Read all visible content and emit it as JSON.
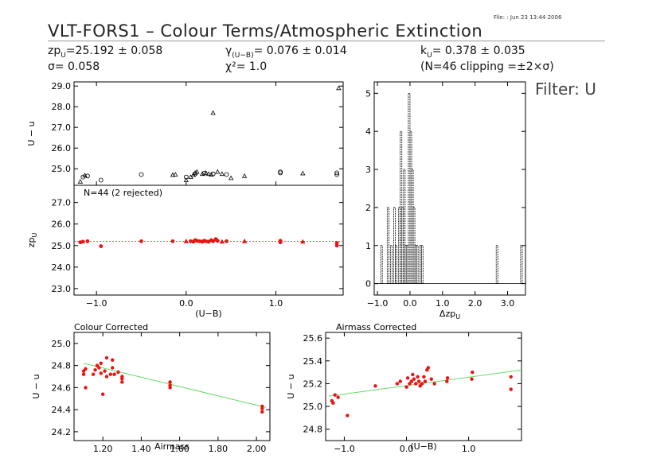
{
  "header": {
    "file_label": "File:",
    "file_date": ": Jun 23 13:44 2006",
    "title": "VLT-FORS1 – Colour Terms/Atmospheric Extinction",
    "zp_label": "zp",
    "zp_sub": "U",
    "zp_value": "=25.192 ± 0.058",
    "sigma_text": "σ= 0.058",
    "gamma_label": "γ",
    "gamma_sub": "(U−B)",
    "gamma_value": "= 0.076 ± 0.014",
    "chi_text": "χ²= 1.0",
    "k_label": "k",
    "k_sub": "U",
    "k_value": "= 0.378 ± 0.035",
    "clip_text": "(N=46 clipping =±2×σ)",
    "filter_label": "Filter: U"
  },
  "colors": {
    "data_red": "#ee1111",
    "fit_green": "#66dd66",
    "fit_red_dotted": "#ee4444",
    "axis": "#000000"
  },
  "chart_data": [
    {
      "id": "raw",
      "type": "scatter",
      "ylabel": "U − u",
      "xlim": [
        -1.25,
        1.75
      ],
      "ylim": [
        24.2,
        29.2
      ],
      "yticks": [
        25.0,
        26.0,
        27.0,
        28.0,
        29.0
      ],
      "ytick_labels": [
        "25.0",
        "26.0",
        "27.0",
        "28.0",
        "29.0"
      ],
      "xticks": [
        -1.0,
        0.0,
        1.0
      ],
      "markers": {
        "circle": "open circle",
        "triangle": "open triangle"
      },
      "circles": [
        [
          -1.15,
          24.6
        ],
        [
          -1.1,
          24.65
        ],
        [
          -0.95,
          24.45
        ],
        [
          -0.5,
          24.72
        ],
        [
          0.0,
          24.6
        ],
        [
          0.1,
          24.75
        ],
        [
          0.2,
          24.78
        ],
        [
          0.3,
          24.75
        ],
        [
          0.45,
          24.72
        ],
        [
          1.05,
          24.85
        ],
        [
          1.05,
          24.8
        ],
        [
          1.68,
          24.8
        ],
        [
          1.68,
          24.72
        ]
      ],
      "triangles": [
        [
          -1.18,
          24.38
        ],
        [
          -1.13,
          24.68
        ],
        [
          -0.15,
          24.7
        ],
        [
          -0.12,
          24.72
        ],
        [
          0.0,
          24.45
        ],
        [
          0.05,
          24.6
        ],
        [
          0.08,
          24.7
        ],
        [
          0.1,
          24.8
        ],
        [
          0.12,
          24.85
        ],
        [
          0.18,
          24.75
        ],
        [
          0.22,
          24.8
        ],
        [
          0.25,
          24.75
        ],
        [
          0.28,
          24.72
        ],
        [
          0.3,
          27.7
        ],
        [
          0.35,
          24.85
        ],
        [
          0.4,
          24.75
        ],
        [
          0.5,
          24.55
        ],
        [
          0.65,
          24.65
        ],
        [
          1.3,
          24.78
        ],
        [
          1.7,
          28.9
        ]
      ]
    },
    {
      "id": "zp",
      "type": "scatter",
      "annotation": "N=44 (2 rejected)",
      "ylabel": "zp",
      "ylabel_sub": "U",
      "xlabel": "(U−B)",
      "xlim": [
        -1.25,
        1.75
      ],
      "ylim": [
        22.7,
        27.8
      ],
      "yticks": [
        23.0,
        24.0,
        25.0,
        26.0,
        27.0
      ],
      "ytick_labels": [
        "23.0",
        "24.0",
        "25.0",
        "26.0",
        "27.0"
      ],
      "xticks": [
        -1.0,
        0.0,
        1.0
      ],
      "xtick_labels": [
        "−1.0",
        "0.0",
        "1.0"
      ],
      "fit_level": 25.192,
      "points": [
        [
          -1.18,
          25.15
        ],
        [
          -1.15,
          25.18
        ],
        [
          -1.1,
          25.2
        ],
        [
          -0.95,
          24.97
        ],
        [
          -0.5,
          25.2
        ],
        [
          -0.15,
          25.2
        ],
        [
          0.05,
          25.2
        ],
        [
          0.08,
          25.18
        ],
        [
          0.1,
          25.25
        ],
        [
          0.12,
          25.22
        ],
        [
          0.15,
          25.2
        ],
        [
          0.18,
          25.18
        ],
        [
          0.2,
          25.22
        ],
        [
          0.22,
          25.2
        ],
        [
          0.25,
          25.18
        ],
        [
          0.28,
          25.25
        ],
        [
          0.3,
          25.2
        ],
        [
          0.33,
          25.3
        ],
        [
          0.35,
          25.22
        ],
        [
          0.45,
          25.2
        ],
        [
          1.05,
          25.15
        ],
        [
          1.05,
          25.22
        ],
        [
          1.68,
          25.0
        ],
        [
          1.68,
          25.12
        ]
      ],
      "triangle_points": [
        [
          0.0,
          25.2
        ],
        [
          0.4,
          25.18
        ],
        [
          0.65,
          25.2
        ],
        [
          1.3,
          25.18
        ]
      ]
    },
    {
      "id": "hist",
      "type": "bar",
      "xlabel": "Δzp",
      "xlabel_sub": "U",
      "xlim": [
        -1.1,
        3.55
      ],
      "ylim": [
        -0.3,
        5.3
      ],
      "yticks": [
        0,
        1,
        2,
        3,
        4,
        5
      ],
      "ytick_labels": [
        "0",
        "1",
        "2",
        "3",
        "4",
        "5"
      ],
      "xticks": [
        -1.0,
        0.0,
        1.0,
        2.0,
        3.0
      ],
      "xtick_labels": [
        "−1.0",
        "0.0",
        "1.0",
        "2.0",
        "3.0"
      ],
      "bin_width": 0.05,
      "bins": [
        [
          -0.9,
          1
        ],
        [
          -0.7,
          2
        ],
        [
          -0.6,
          1
        ],
        [
          -0.5,
          2
        ],
        [
          -0.45,
          1
        ],
        [
          -0.35,
          2
        ],
        [
          -0.3,
          4
        ],
        [
          -0.25,
          2
        ],
        [
          -0.2,
          3
        ],
        [
          -0.15,
          1
        ],
        [
          -0.1,
          1
        ],
        [
          -0.05,
          5
        ],
        [
          0.0,
          4
        ],
        [
          0.05,
          3
        ],
        [
          0.1,
          2
        ],
        [
          0.15,
          1
        ],
        [
          0.2,
          1
        ],
        [
          0.3,
          1
        ],
        [
          0.35,
          1
        ],
        [
          2.65,
          1
        ],
        [
          3.4,
          1
        ]
      ]
    },
    {
      "id": "colour_corrected",
      "type": "scatter",
      "title": "Colour Corrected",
      "ylabel": "U − u",
      "xlabel": "Airmass",
      "xlim": [
        1.05,
        2.07
      ],
      "ylim": [
        24.12,
        25.1
      ],
      "yticks": [
        24.2,
        24.4,
        24.6,
        24.8,
        25.0
      ],
      "ytick_labels": [
        "24.2",
        "24.4",
        "24.6",
        "24.8",
        "25.0"
      ],
      "xticks": [
        1.2,
        1.4,
        1.6,
        1.8,
        2.0
      ],
      "xtick_labels": [
        "1.20",
        "1.40",
        "1.60",
        "1.80",
        "2.00"
      ],
      "fit": [
        [
          1.1,
          24.82
        ],
        [
          2.05,
          24.42
        ]
      ],
      "points": [
        [
          1.1,
          24.72
        ],
        [
          1.1,
          24.75
        ],
        [
          1.11,
          24.6
        ],
        [
          1.11,
          24.77
        ],
        [
          1.15,
          24.72
        ],
        [
          1.16,
          24.76
        ],
        [
          1.17,
          24.8
        ],
        [
          1.18,
          24.78
        ],
        [
          1.19,
          24.82
        ],
        [
          1.19,
          24.73
        ],
        [
          1.2,
          24.54
        ],
        [
          1.21,
          24.75
        ],
        [
          1.22,
          24.87
        ],
        [
          1.22,
          24.7
        ],
        [
          1.24,
          24.72
        ],
        [
          1.25,
          24.85
        ],
        [
          1.25,
          24.78
        ],
        [
          1.26,
          24.72
        ],
        [
          1.28,
          24.74
        ],
        [
          1.3,
          24.7
        ],
        [
          1.3,
          24.68
        ],
        [
          1.3,
          24.65
        ],
        [
          1.55,
          24.6
        ],
        [
          1.55,
          24.62
        ],
        [
          1.55,
          24.65
        ],
        [
          2.03,
          24.38
        ],
        [
          2.03,
          24.41
        ],
        [
          2.03,
          24.43
        ]
      ]
    },
    {
      "id": "airmass_corrected",
      "type": "scatter",
      "title": "Airmass Corrected",
      "ylabel": "U − u",
      "xlabel": "(U−B)",
      "xlim": [
        -1.3,
        1.85
      ],
      "ylim": [
        24.7,
        25.65
      ],
      "yticks": [
        24.8,
        25.0,
        25.2,
        25.4,
        25.6
      ],
      "ytick_labels": [
        "24.8",
        "25.0",
        "25.2",
        "25.4",
        "25.6"
      ],
      "xticks": [
        -1.0,
        0.0,
        1.0
      ],
      "xtick_labels": [
        "−1.0",
        "0.0",
        "1.0"
      ],
      "fit": [
        [
          -1.25,
          25.09
        ],
        [
          1.85,
          25.32
        ]
      ],
      "points": [
        [
          -1.2,
          25.05
        ],
        [
          -1.18,
          25.03
        ],
        [
          -1.15,
          25.1
        ],
        [
          -1.1,
          25.08
        ],
        [
          -0.95,
          24.92
        ],
        [
          -0.5,
          25.18
        ],
        [
          -0.15,
          25.2
        ],
        [
          -0.1,
          25.22
        ],
        [
          0.0,
          25.17
        ],
        [
          0.02,
          25.25
        ],
        [
          0.05,
          25.2
        ],
        [
          0.08,
          25.22
        ],
        [
          0.1,
          25.28
        ],
        [
          0.12,
          25.24
        ],
        [
          0.15,
          25.2
        ],
        [
          0.18,
          25.26
        ],
        [
          0.2,
          25.22
        ],
        [
          0.22,
          25.18
        ],
        [
          0.25,
          25.2
        ],
        [
          0.28,
          25.26
        ],
        [
          0.3,
          25.22
        ],
        [
          0.33,
          25.32
        ],
        [
          0.35,
          25.34
        ],
        [
          0.4,
          25.24
        ],
        [
          0.45,
          25.2
        ],
        [
          0.65,
          25.22
        ],
        [
          0.66,
          25.25
        ],
        [
          1.05,
          25.24
        ],
        [
          1.06,
          25.3
        ],
        [
          1.68,
          25.15
        ],
        [
          1.68,
          25.26
        ]
      ]
    }
  ]
}
